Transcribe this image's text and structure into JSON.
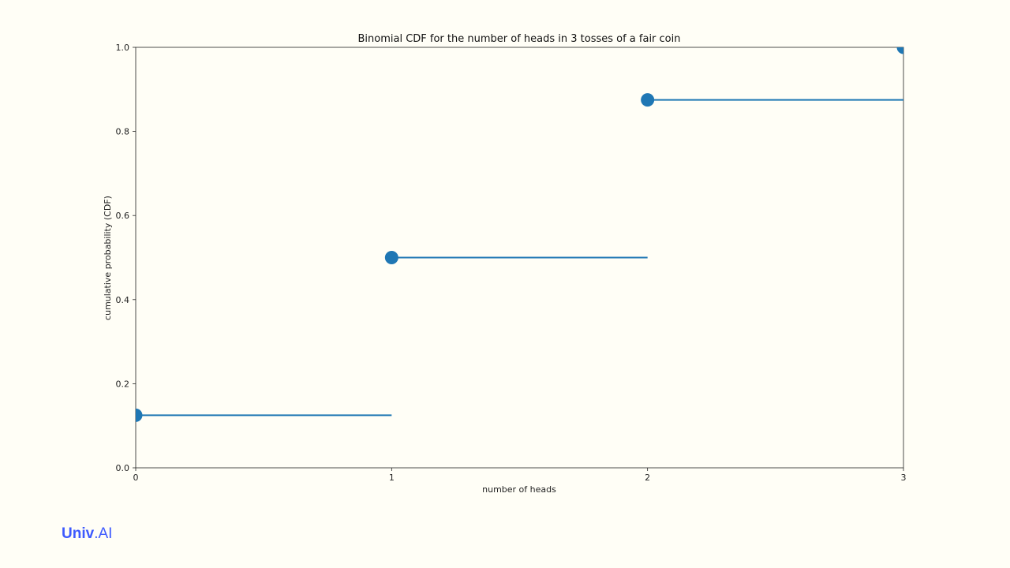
{
  "chart_data": {
    "type": "line",
    "title": "Binomial CDF for the number of heads in 3 tosses of a fair coin",
    "xlabel": "number of heads",
    "ylabel": "cumulative probability (CDF)",
    "xlim": [
      0,
      3
    ],
    "ylim": [
      0,
      1
    ],
    "x_ticks": [
      "0",
      "1",
      "2",
      "3"
    ],
    "y_ticks": [
      "0.0",
      "0.2",
      "0.4",
      "0.6",
      "0.8",
      "1.0"
    ],
    "grid": false,
    "series": [
      {
        "color": "#1f77b4",
        "points": [
          {
            "x": 0,
            "y": 0.125
          },
          {
            "x": 1,
            "y": 0.5
          },
          {
            "x": 2,
            "y": 0.875
          },
          {
            "x": 3,
            "y": 1.0
          }
        ],
        "segments": [
          {
            "x_start": 0,
            "x_end": 1,
            "y": 0.125
          },
          {
            "x_start": 1,
            "x_end": 2,
            "y": 0.5
          },
          {
            "x_start": 2,
            "x_end": 3,
            "y": 0.875
          }
        ]
      }
    ]
  },
  "logo": {
    "part1": "Univ",
    "part2": ".AI",
    "color": "#3d5afe"
  }
}
